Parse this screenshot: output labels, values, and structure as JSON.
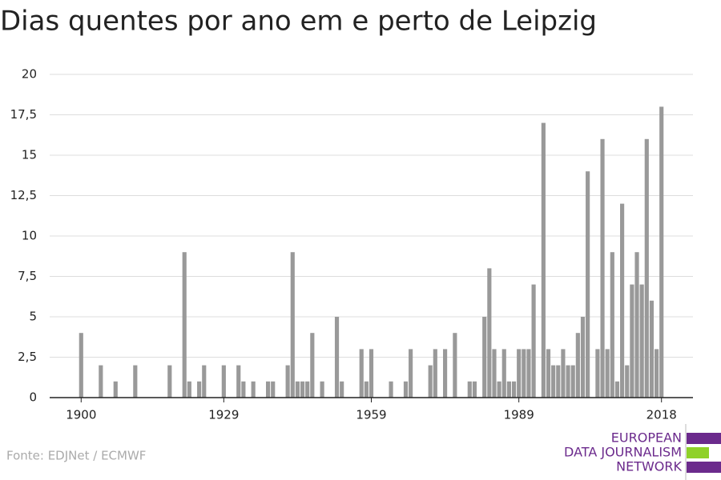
{
  "chart_data": {
    "type": "bar",
    "title": "Dias quentes por ano em e perto de Leipzig",
    "x": [
      1900,
      1904,
      1907,
      1911,
      1918,
      1921,
      1922,
      1924,
      1925,
      1929,
      1932,
      1933,
      1935,
      1938,
      1939,
      1942,
      1943,
      1944,
      1945,
      1946,
      1947,
      1949,
      1952,
      1953,
      1957,
      1958,
      1959,
      1963,
      1966,
      1967,
      1971,
      1972,
      1974,
      1976,
      1979,
      1980,
      1982,
      1983,
      1984,
      1985,
      1986,
      1987,
      1988,
      1989,
      1990,
      1991,
      1992,
      1994,
      1995,
      1996,
      1997,
      1998,
      1999,
      2000,
      2001,
      2002,
      2003,
      2005,
      2006,
      2007,
      2008,
      2009,
      2010,
      2011,
      2012,
      2013,
      2014,
      2015,
      2016,
      2017,
      2018
    ],
    "values": [
      4,
      2,
      1,
      2,
      2,
      9,
      1,
      1,
      2,
      2,
      2,
      1,
      1,
      1,
      1,
      2,
      9,
      1,
      1,
      1,
      4,
      1,
      5,
      1,
      3,
      1,
      3,
      1,
      1,
      3,
      2,
      3,
      3,
      4,
      1,
      1,
      5,
      8,
      3,
      1,
      3,
      1,
      1,
      3,
      3,
      3,
      7,
      17,
      3,
      2,
      2,
      3,
      2,
      2,
      4,
      5,
      14,
      3,
      16,
      3,
      9,
      1,
      12,
      2,
      7,
      9,
      7,
      16,
      6,
      3,
      18
    ],
    "color": "#999999",
    "xlim": [
      1893.6,
      2024.4
    ],
    "xticks": [
      1900,
      1929,
      1959,
      1989,
      2018
    ],
    "ylim": [
      0,
      20
    ],
    "yticks": [
      0,
      {
        "value": 2.5,
        "label": "2,5"
      },
      5,
      {
        "value": 7.5,
        "label": "7,5"
      },
      10,
      {
        "value": 12.5,
        "label": "12,5"
      },
      15,
      {
        "value": 17.5,
        "label": "17,5"
      },
      20
    ],
    "grid": true,
    "source": "Fonte: EDJNet / ECMWF",
    "logo_lines": [
      "EUROPEAN",
      "DATA JOURNALISM",
      "NETWORK"
    ]
  }
}
